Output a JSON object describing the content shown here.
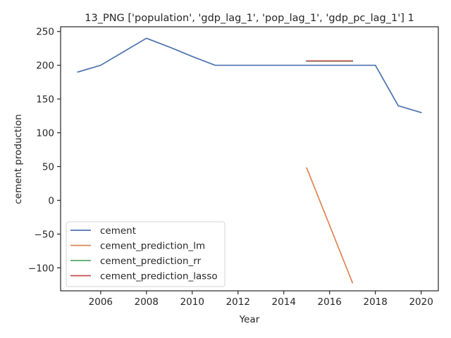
{
  "chart_data": {
    "type": "line",
    "title": "13_PNG ['population', 'gdp_lag_1', 'pop_lag_1', 'gdp_pc_lag_1'] 1",
    "xlabel": "Year",
    "ylabel": "cement production",
    "xlim": [
      2004.25,
      2020.75
    ],
    "ylim": [
      -134,
      257
    ],
    "xticks": [
      2006,
      2008,
      2010,
      2012,
      2014,
      2016,
      2018,
      2020
    ],
    "yticks": [
      -100,
      -50,
      0,
      50,
      100,
      150,
      200,
      250
    ],
    "ytick_labels": [
      "−100",
      "−50",
      "0",
      "50",
      "100",
      "150",
      "200",
      "250"
    ],
    "grid": false,
    "legend_position": "lower-left",
    "series": [
      {
        "name": "cement",
        "color": "#4c72b0",
        "x": [
          2005,
          2006,
          2007,
          2008,
          2009,
          2010,
          2011,
          2012,
          2013,
          2014,
          2015,
          2016,
          2017,
          2018,
          2019,
          2020
        ],
        "y": [
          190,
          200,
          220,
          240,
          227,
          213,
          200,
          200,
          200,
          200,
          200,
          200,
          200,
          200,
          140,
          130
        ]
      },
      {
        "name": "cement_prediction_lm",
        "color": "#dd8452",
        "x": [
          2015,
          2016,
          2017
        ],
        "y": [
          48,
          -37,
          -122
        ]
      },
      {
        "name": "cement_prediction_rr",
        "color": "#55a868",
        "x": [
          2015,
          2016,
          2017
        ],
        "y": [
          206,
          206,
          206
        ]
      },
      {
        "name": "cement_prediction_lasso",
        "color": "#c44e52",
        "x": [
          2015,
          2016,
          2017
        ],
        "y": [
          206.5,
          206.5,
          206.5
        ]
      }
    ]
  }
}
